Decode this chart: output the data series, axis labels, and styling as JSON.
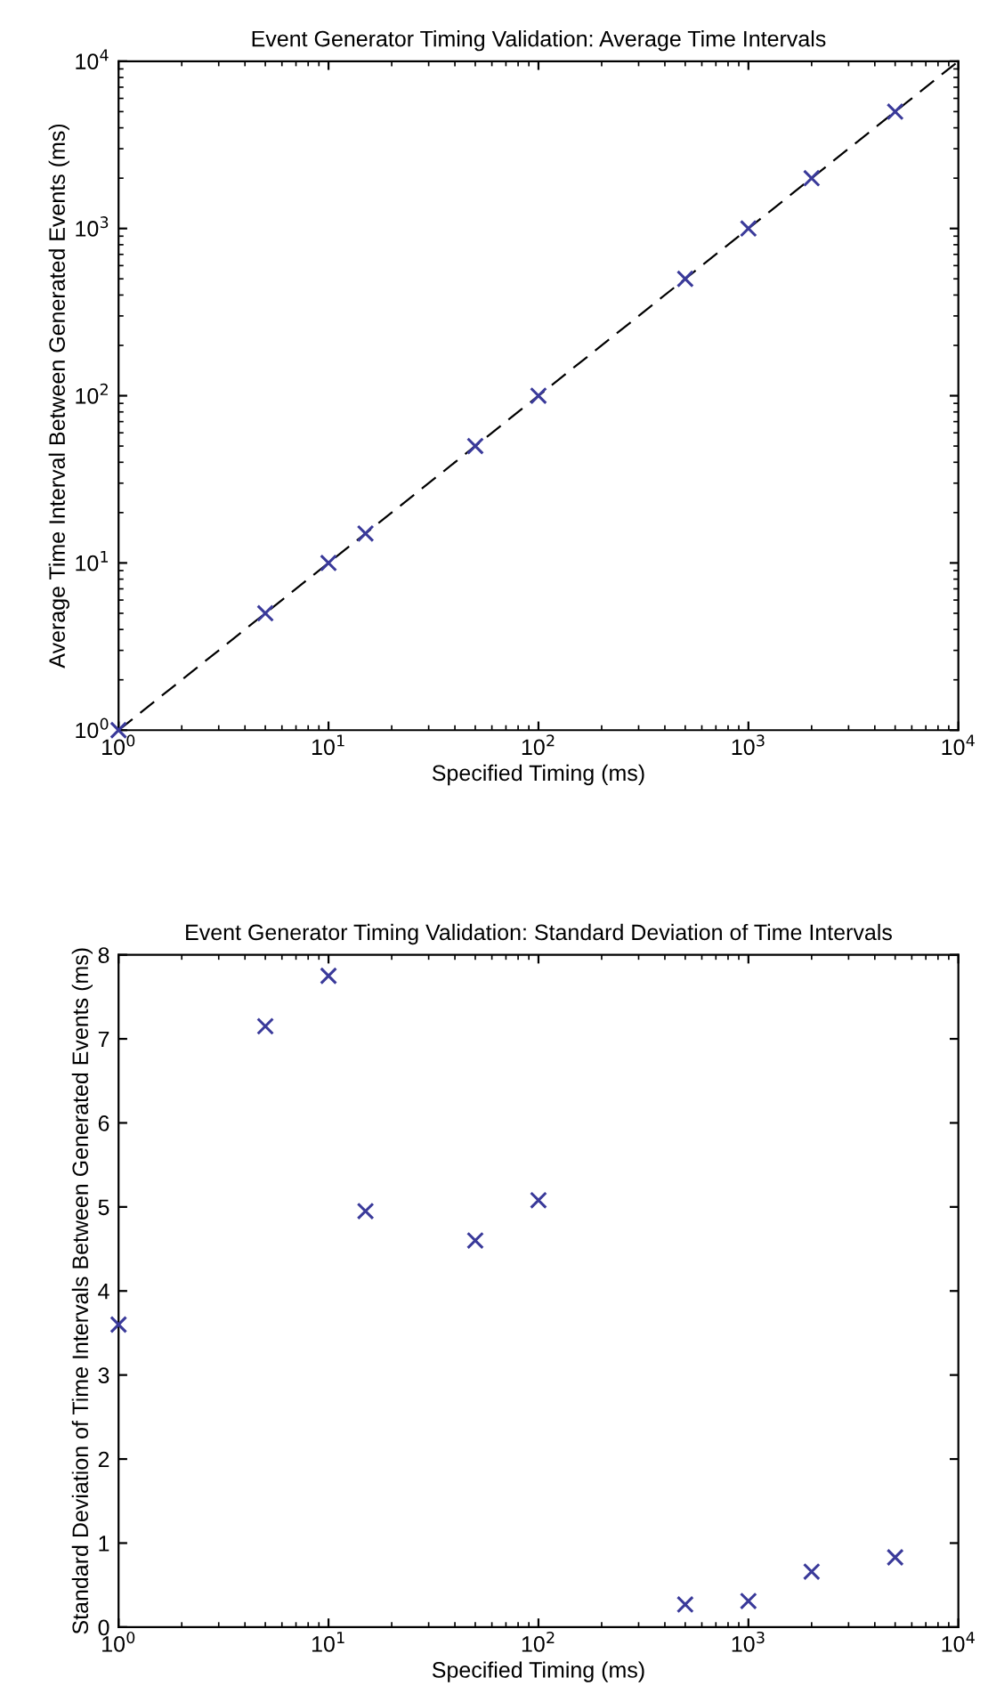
{
  "chart_data": [
    {
      "type": "scatter",
      "title": "Event Generator Timing Validation: Average Time Intervals",
      "xlabel": "Specified Timing (ms)",
      "ylabel": "Average Time Interval Between Generated Events (ms)",
      "log": "xy",
      "grid": false,
      "marker": "cross",
      "x": [
        1,
        5,
        10,
        15,
        50,
        100,
        500,
        1000,
        2000,
        5000
      ],
      "series": [
        {
          "color": "#3a3a9a",
          "values": [
            1,
            5,
            10,
            15,
            50,
            100,
            500,
            1000,
            2000,
            5000
          ]
        },
        {
          "type": "line",
          "color": "#000000",
          "line_style": "dashed",
          "marker": "none",
          "x": [
            1,
            10000
          ],
          "values": [
            1,
            10000
          ]
        }
      ],
      "xlim": [
        1,
        10000
      ],
      "ylim": [
        1,
        10000
      ],
      "xticks": [
        {
          "value": 1,
          "label": "10$^{0}$"
        },
        {
          "value": 10,
          "label": "10$^{1}$"
        },
        {
          "value": 100,
          "label": "10$^{2}$"
        },
        {
          "value": 1000,
          "label": "10$^{3}$"
        },
        {
          "value": 10000,
          "label": "10$^{4}$"
        }
      ],
      "yticks": [
        {
          "value": 1,
          "label": "10$^{0}$"
        },
        {
          "value": 10,
          "label": "10$^{1}$"
        },
        {
          "value": 100,
          "label": "10$^{2}$"
        },
        {
          "value": 1000,
          "label": "10$^{3}$"
        },
        {
          "value": 10000,
          "label": "10$^{4}$"
        }
      ]
    },
    {
      "type": "scatter",
      "title": "Event Generator Timing Validation: Standard Deviation of Time Intervals",
      "xlabel": "Specified Timing (ms)",
      "ylabel": "Standard Deviation of Time Intervals Between Generated Events (ms)",
      "log": "x",
      "grid": false,
      "marker": "cross",
      "x": [
        1,
        5,
        10,
        15,
        50,
        100,
        500,
        1000,
        2000,
        5000
      ],
      "series": [
        {
          "color": "#3a3a9a",
          "values": [
            3.6,
            7.15,
            7.75,
            4.95,
            4.6,
            5.08,
            0.27,
            0.31,
            0.66,
            0.83
          ]
        }
      ],
      "xlim": [
        1,
        10000
      ],
      "ylim": [
        0,
        8
      ],
      "xticks": [
        {
          "value": 1,
          "label": "10$^{0}$"
        },
        {
          "value": 10,
          "label": "10$^{1}$"
        },
        {
          "value": 100,
          "label": "10$^{2}$"
        },
        {
          "value": 1000,
          "label": "10$^{3}$"
        },
        {
          "value": 10000,
          "label": "10$^{4}$"
        }
      ],
      "yticks": [
        0,
        1,
        2,
        3,
        4,
        5,
        6,
        7,
        8
      ]
    }
  ]
}
